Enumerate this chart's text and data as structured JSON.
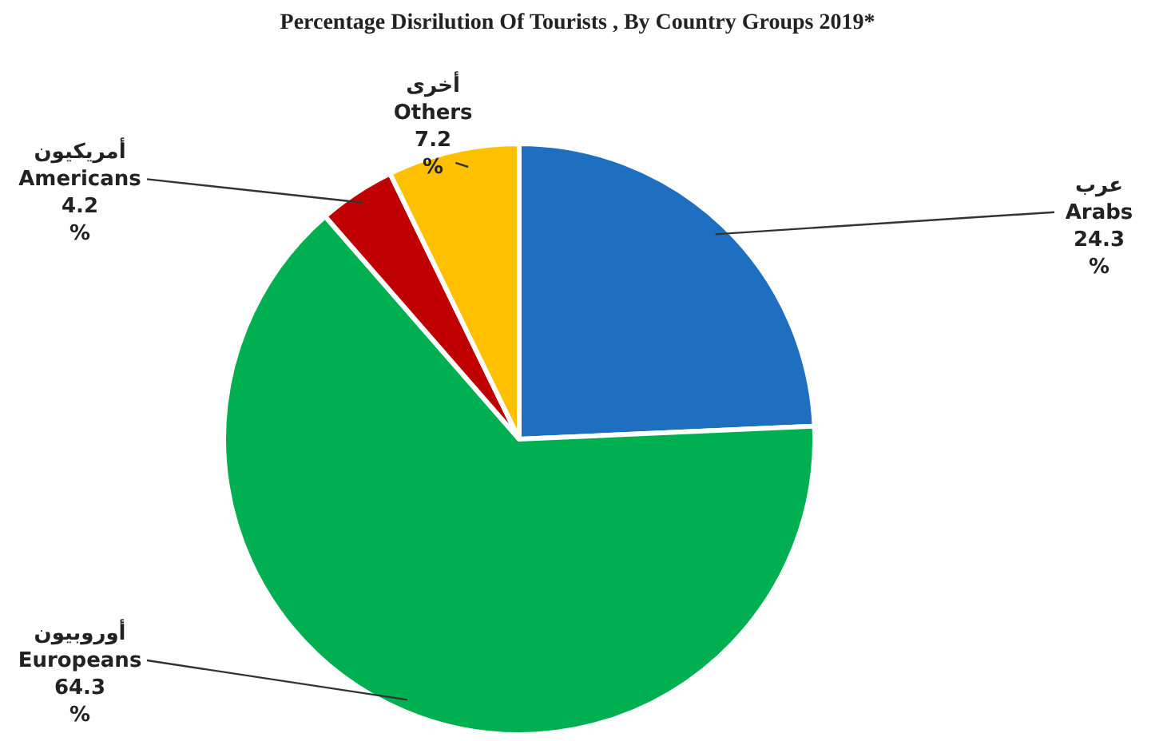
{
  "chart_data": {
    "type": "pie",
    "title": "Percentage Disrilution Of Tourists , By Country Groups 2019*",
    "categories": [
      "عرب\nArabs",
      "أوروبيون\nEuropeans",
      "أمريكيون\nAmericans",
      "أخرى\nOthers"
    ],
    "values": [
      24.3,
      64.3,
      4.2,
      7.2
    ],
    "value_labels": [
      "24.3\n%",
      "64.3\n%",
      "4.2\n%",
      "7.2\n%"
    ],
    "colors": [
      "#1f6fc0",
      "#00b050",
      "#c00000",
      "#ffc000"
    ]
  }
}
